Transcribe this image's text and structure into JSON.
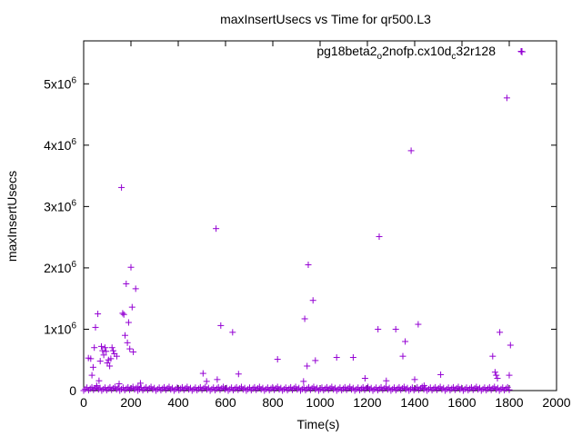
{
  "chart_data": {
    "type": "scatter",
    "title": "maxInsertUsecs vs Time for qr500.L3",
    "xlabel": "Time(s)",
    "ylabel": "maxInsertUsecs",
    "xlim": [
      0,
      2000
    ],
    "ylim": [
      0,
      5700000
    ],
    "x_ticks": [
      0,
      200,
      400,
      600,
      800,
      1000,
      1200,
      1400,
      1600,
      1800,
      2000
    ],
    "x_tick_labels": [
      "0",
      "200",
      "400",
      "600",
      "800",
      "1000",
      "1200",
      "1400",
      "1600",
      "1800",
      "2000"
    ],
    "y_ticks": [
      0,
      1000000,
      2000000,
      3000000,
      4000000,
      5000000
    ],
    "y_tick_labels": [
      {
        "mantissa": "0",
        "exp": ""
      },
      {
        "mantissa": "1x10",
        "exp": "6"
      },
      {
        "mantissa": "2x10",
        "exp": "6"
      },
      {
        "mantissa": "3x10",
        "exp": "6"
      },
      {
        "mantissa": "4x10",
        "exp": "6"
      },
      {
        "mantissa": "5x10",
        "exp": "6"
      }
    ],
    "grid": false,
    "legend_position": "top-right",
    "series": [
      {
        "name_parts": [
          {
            "t": "pg18beta2",
            "s": ""
          },
          {
            "t": "o",
            "s": "sub"
          },
          {
            "t": "2nofp.cx10d",
            "s": ""
          },
          {
            "t": "c",
            "s": "sub"
          },
          {
            "t": "32r128",
            "s": ""
          }
        ],
        "color": "#9400d3",
        "marker": "plus",
        "points": [
          [
            20,
            530000
          ],
          [
            30,
            520000
          ],
          [
            35,
            250000
          ],
          [
            40,
            380000
          ],
          [
            45,
            700000
          ],
          [
            50,
            1030000
          ],
          [
            55,
            80000
          ],
          [
            60,
            1250000
          ],
          [
            65,
            160000
          ],
          [
            70,
            480000
          ],
          [
            75,
            720000
          ],
          [
            80,
            650000
          ],
          [
            85,
            580000
          ],
          [
            90,
            700000
          ],
          [
            95,
            640000
          ],
          [
            100,
            450000
          ],
          [
            105,
            500000
          ],
          [
            110,
            400000
          ],
          [
            115,
            520000
          ],
          [
            120,
            700000
          ],
          [
            125,
            650000
          ],
          [
            130,
            600000
          ],
          [
            140,
            560000
          ],
          [
            150,
            110000
          ],
          [
            160,
            3310000
          ],
          [
            165,
            1260000
          ],
          [
            170,
            1240000
          ],
          [
            175,
            900000
          ],
          [
            180,
            1740000
          ],
          [
            185,
            780000
          ],
          [
            190,
            1110000
          ],
          [
            195,
            680000
          ],
          [
            200,
            2010000
          ],
          [
            205,
            1360000
          ],
          [
            210,
            630000
          ],
          [
            220,
            1660000
          ],
          [
            230,
            60000
          ],
          [
            240,
            120000
          ],
          [
            505,
            280000
          ],
          [
            520,
            150000
          ],
          [
            560,
            2640000
          ],
          [
            565,
            180000
          ],
          [
            580,
            1060000
          ],
          [
            630,
            950000
          ],
          [
            655,
            270000
          ],
          [
            820,
            510000
          ],
          [
            930,
            150000
          ],
          [
            935,
            1170000
          ],
          [
            945,
            400000
          ],
          [
            950,
            2050000
          ],
          [
            970,
            1470000
          ],
          [
            980,
            490000
          ],
          [
            1070,
            540000
          ],
          [
            1140,
            540000
          ],
          [
            1190,
            200000
          ],
          [
            1245,
            1000000
          ],
          [
            1250,
            2510000
          ],
          [
            1280,
            160000
          ],
          [
            1320,
            1000000
          ],
          [
            1350,
            560000
          ],
          [
            1360,
            800000
          ],
          [
            1385,
            3910000
          ],
          [
            1400,
            180000
          ],
          [
            1415,
            1080000
          ],
          [
            1440,
            80000
          ],
          [
            1510,
            260000
          ],
          [
            1730,
            560000
          ],
          [
            1740,
            300000
          ],
          [
            1745,
            250000
          ],
          [
            1750,
            200000
          ],
          [
            1760,
            950000
          ],
          [
            1790,
            4770000
          ],
          [
            1800,
            250000
          ],
          [
            1805,
            740000
          ],
          [
            1850,
            5530000
          ]
        ],
        "baseline_band": {
          "x_range": [
            0,
            1800
          ],
          "y_range": [
            0,
            60000
          ],
          "count": 260
        }
      }
    ]
  }
}
